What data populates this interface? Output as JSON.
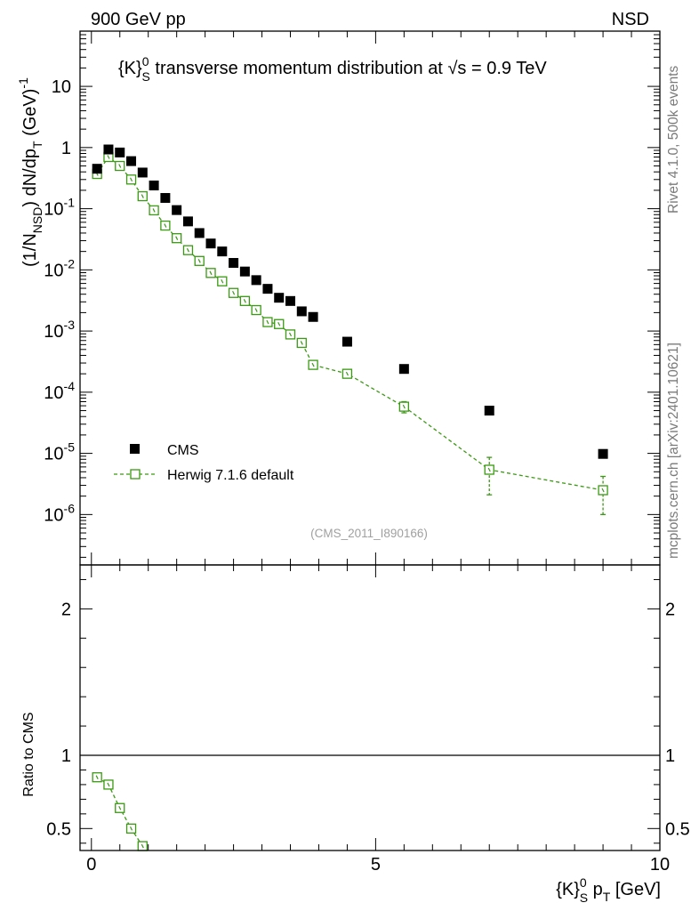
{
  "header": {
    "left": "900 GeV pp",
    "right": "NSD"
  },
  "side_labels": {
    "rivet": "Rivet 4.1.0,  500k events",
    "mcplots": "mcplots.cern.ch [arXiv:2401.10621]"
  },
  "chart_data": {
    "type": "scatter",
    "title": "{K}⁰ₛ transverse momentum distribution at √s = 0.9 TeV",
    "analysis_id": "(CMS_2011_I890166)",
    "xlabel": "{K}⁰ₛ pT [GeV]",
    "ylabel": "(1/N_NSD) dN/dp_T (GeV)⁻¹",
    "ratio_ylabel": "Ratio to CMS",
    "xlim": [
      -0.2,
      10.0
    ],
    "ylim": [
      1.5e-07,
      80
    ],
    "ratio_ylim": [
      0.35,
      2.3
    ],
    "yscale": "log",
    "x_ticks": [
      0,
      5,
      10
    ],
    "x_tick_labels": [
      "0",
      "5",
      "10"
    ],
    "y_ticks": [
      1e-06,
      1e-05,
      0.0001,
      0.001,
      0.01,
      0.1,
      1,
      10
    ],
    "y_tick_labels": [
      {
        "base": "10",
        "exp": "-6"
      },
      {
        "base": "10",
        "exp": "-5"
      },
      {
        "base": "10",
        "exp": "-4"
      },
      {
        "base": "10",
        "exp": "-3"
      },
      {
        "base": "10",
        "exp": "-2"
      },
      {
        "base": "10",
        "exp": "-1"
      },
      {
        "base": "1",
        "exp": ""
      },
      {
        "base": "10",
        "exp": ""
      }
    ],
    "ratio_ticks": [
      0.5,
      1,
      2
    ],
    "ratio_tick_labels": [
      "0.5",
      "1",
      "2"
    ],
    "legend_position": "lower-left",
    "series": [
      {
        "name": "CMS",
        "style": "markers",
        "color": "#000000",
        "x": [
          0.1,
          0.3,
          0.5,
          0.7,
          0.9,
          1.1,
          1.3,
          1.5,
          1.7,
          1.9,
          2.1,
          2.3,
          2.5,
          2.7,
          2.9,
          3.1,
          3.3,
          3.5,
          3.7,
          3.9,
          4.5,
          5.5,
          7.0,
          9.0
        ],
        "y": [
          0.45,
          0.93,
          0.83,
          0.6,
          0.39,
          0.24,
          0.15,
          0.095,
          0.062,
          0.04,
          0.027,
          0.02,
          0.013,
          0.0094,
          0.0068,
          0.0049,
          0.0035,
          0.0031,
          0.0021,
          0.0017,
          0.00067,
          0.00024,
          5e-05,
          9.8e-06
        ]
      },
      {
        "name": "Herwig 7.1.6 default",
        "style": "open-square-dashed",
        "color": "#3a9a12",
        "x": [
          0.1,
          0.3,
          0.5,
          0.7,
          0.9,
          1.1,
          1.3,
          1.5,
          1.7,
          1.9,
          2.1,
          2.3,
          2.5,
          2.7,
          2.9,
          3.1,
          3.3,
          3.5,
          3.7,
          3.9,
          4.5,
          5.5,
          7.0,
          9.0
        ],
        "y": [
          0.37,
          0.7,
          0.5,
          0.3,
          0.16,
          0.094,
          0.053,
          0.033,
          0.021,
          0.014,
          0.0089,
          0.0065,
          0.0042,
          0.0031,
          0.0022,
          0.0014,
          0.0013,
          0.00088,
          0.00064,
          0.00028,
          0.0002,
          5.8e-05,
          5.4e-06,
          2.5e-06
        ],
        "err_low": [
          0,
          0,
          0,
          0,
          0,
          0,
          0,
          0,
          0,
          0,
          0,
          0,
          0,
          0,
          0,
          0,
          0,
          0,
          0,
          0,
          0,
          1.2e-05,
          3.3e-06,
          1.5e-06
        ],
        "err_high": [
          0,
          0,
          0,
          0,
          0,
          0,
          0,
          0,
          0,
          0,
          0,
          0,
          0,
          0,
          0,
          0,
          0,
          0,
          0,
          0,
          0,
          1.2e-05,
          3.2e-06,
          1.7e-06
        ],
        "ratio_x": [
          0.1,
          0.3,
          0.5,
          0.7,
          0.9
        ],
        "ratio": [
          0.85,
          0.8,
          0.64,
          0.5,
          0.38
        ]
      }
    ]
  }
}
